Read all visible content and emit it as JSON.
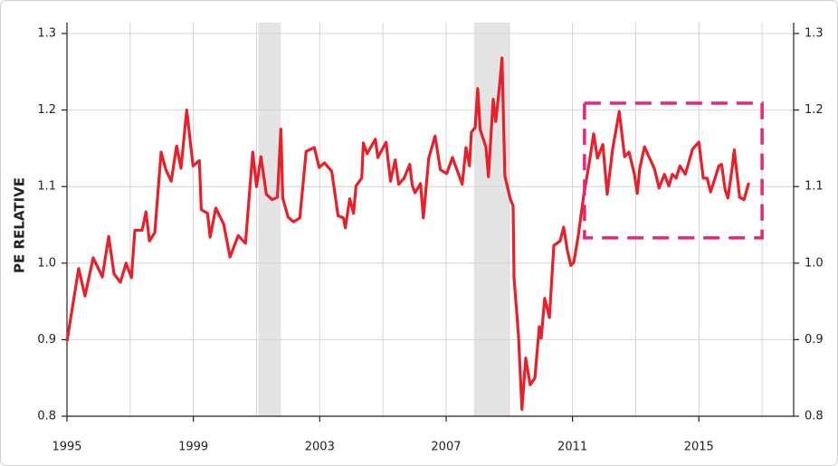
{
  "chart_data": {
    "type": "line",
    "ylabel": "PE RELATIVE",
    "color": "#e8202a",
    "x": [
      1995.0,
      1995.37,
      1995.57,
      1995.83,
      1996.12,
      1996.32,
      1996.49,
      1996.69,
      1996.87,
      1997.04,
      1997.15,
      1997.38,
      1997.5,
      1997.61,
      1997.78,
      1997.98,
      1998.13,
      1998.3,
      1998.47,
      1998.61,
      1998.79,
      1998.99,
      1999.19,
      1999.25,
      1999.45,
      1999.53,
      1999.71,
      1999.96,
      2000.16,
      2000.42,
      2000.65,
      2000.88,
      2001.0,
      2001.14,
      2001.31,
      2001.49,
      2001.66,
      2001.77,
      2001.83,
      2002.0,
      2002.17,
      2002.37,
      2002.57,
      2002.83,
      2002.98,
      2003.15,
      2003.38,
      2003.58,
      2003.75,
      2003.81,
      2003.95,
      2004.07,
      2004.15,
      2004.33,
      2004.38,
      2004.5,
      2004.76,
      2004.84,
      2005.1,
      2005.24,
      2005.39,
      2005.5,
      2005.67,
      2005.85,
      2005.93,
      2006.02,
      2006.19,
      2006.28,
      2006.45,
      2006.65,
      2006.82,
      2007.02,
      2007.2,
      2007.37,
      2007.51,
      2007.63,
      2007.74,
      2007.8,
      2007.92,
      2008.0,
      2008.08,
      2008.26,
      2008.34,
      2008.49,
      2008.57,
      2008.69,
      2008.77,
      2008.86,
      2009.03,
      2009.12,
      2009.15,
      2009.29,
      2009.4,
      2009.52,
      2009.66,
      2009.81,
      2009.95,
      2010.01,
      2010.12,
      2010.27,
      2010.41,
      2010.61,
      2010.72,
      2010.84,
      2010.95,
      2011.04,
      2011.18,
      2011.36,
      2011.53,
      2011.67,
      2011.79,
      2011.96,
      2012.1,
      2012.27,
      2012.48,
      2012.65,
      2012.79,
      2012.96,
      2013.05,
      2013.13,
      2013.28,
      2013.42,
      2013.59,
      2013.74,
      2013.91,
      2014.05,
      2014.16,
      2014.28,
      2014.4,
      2014.57,
      2014.8,
      2015.0,
      2015.14,
      2015.26,
      2015.37,
      2015.52,
      2015.63,
      2015.72,
      2015.83,
      2015.92,
      2016.06,
      2016.12,
      2016.29,
      2016.43,
      2016.58
    ],
    "values": [
      0.898,
      0.993,
      0.957,
      1.007,
      0.982,
      1.035,
      0.986,
      0.975,
      1.0,
      0.981,
      1.043,
      1.043,
      1.067,
      1.029,
      1.04,
      1.145,
      1.122,
      1.107,
      1.153,
      1.124,
      1.2,
      1.127,
      1.134,
      1.07,
      1.065,
      1.034,
      1.072,
      1.051,
      1.008,
      1.036,
      1.026,
      1.145,
      1.1,
      1.139,
      1.09,
      1.083,
      1.086,
      1.175,
      1.085,
      1.06,
      1.054,
      1.059,
      1.146,
      1.151,
      1.125,
      1.131,
      1.12,
      1.062,
      1.059,
      1.046,
      1.084,
      1.065,
      1.101,
      1.111,
      1.157,
      1.143,
      1.162,
      1.138,
      1.158,
      1.107,
      1.135,
      1.103,
      1.111,
      1.129,
      1.101,
      1.092,
      1.104,
      1.059,
      1.137,
      1.166,
      1.122,
      1.117,
      1.138,
      1.119,
      1.103,
      1.151,
      1.127,
      1.171,
      1.177,
      1.228,
      1.174,
      1.152,
      1.113,
      1.214,
      1.185,
      1.231,
      1.268,
      1.114,
      1.084,
      1.075,
      0.981,
      0.906,
      0.809,
      0.876,
      0.841,
      0.85,
      0.917,
      0.902,
      0.954,
      0.929,
      1.023,
      1.029,
      1.047,
      1.016,
      0.997,
      1.001,
      1.035,
      1.09,
      1.131,
      1.169,
      1.137,
      1.155,
      1.09,
      1.149,
      1.198,
      1.139,
      1.145,
      1.116,
      1.091,
      1.124,
      1.152,
      1.139,
      1.124,
      1.098,
      1.116,
      1.101,
      1.116,
      1.111,
      1.127,
      1.116,
      1.149,
      1.158,
      1.111,
      1.111,
      1.093,
      1.112,
      1.127,
      1.129,
      1.096,
      1.085,
      1.126,
      1.148,
      1.086,
      1.083,
      1.105
    ],
    "xlim": [
      1995,
      2018
    ],
    "xticks": [
      1995,
      1999,
      2003,
      2007,
      2011,
      2015
    ],
    "xgrid": [
      1997,
      2001,
      2005,
      2009,
      2013,
      2017
    ],
    "ylim": [
      0.8,
      1.3
    ],
    "yticks": [
      0.8,
      0.9,
      {
        "value": 1,
        "label": "1.0"
      },
      1.1,
      1.2,
      1.3
    ],
    "y2lim": [
      0.8,
      1.3
    ],
    "y2ticks": [
      0.8,
      0.9,
      {
        "value": 1,
        "label": "1.0"
      },
      1.1,
      1.2,
      1.3
    ],
    "grid": true,
    "shaded_regions": [
      [
        2001.06,
        2001.77
      ],
      [
        2007.88,
        2009.0
      ]
    ],
    "shade_color": "#e4e4e4",
    "highlight": {
      "x": [
        2011.38,
        2017.0
      ],
      "y": [
        1.033,
        1.209
      ],
      "color": "#e0287a"
    }
  }
}
